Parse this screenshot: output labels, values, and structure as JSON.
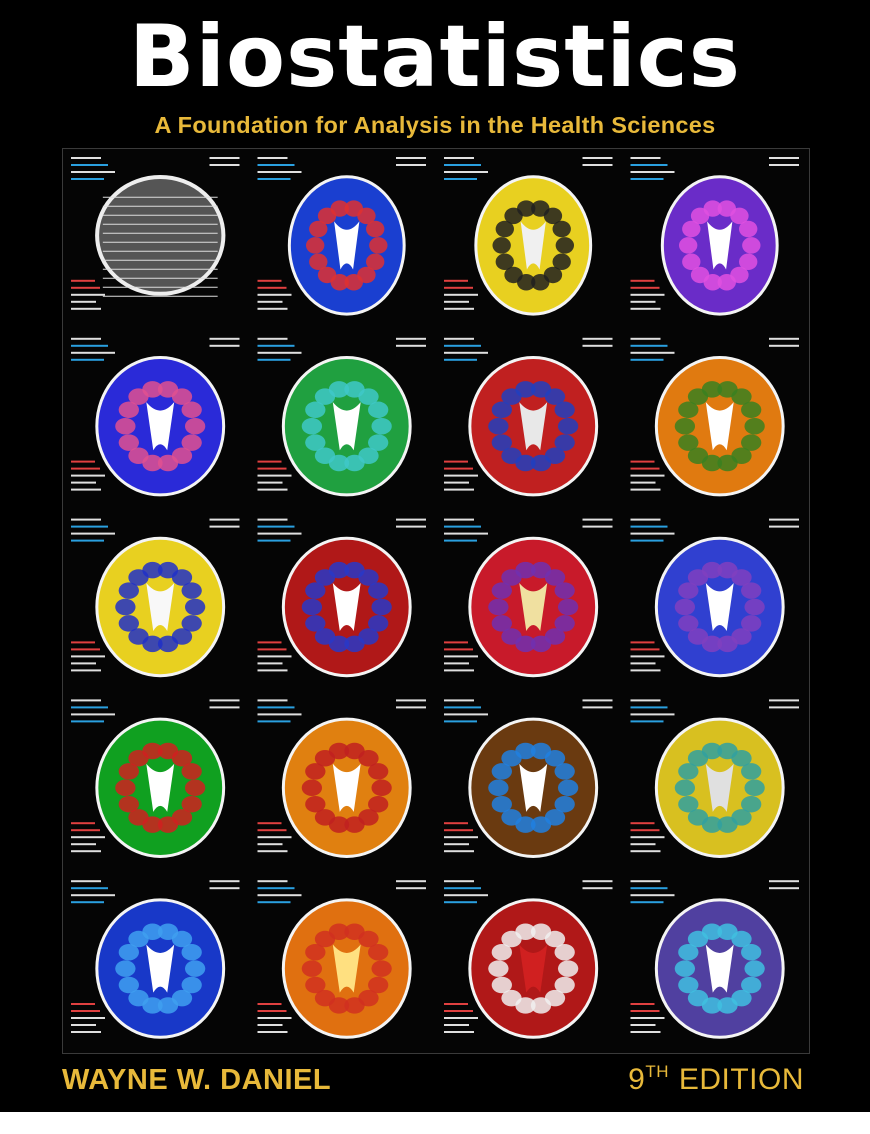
{
  "cover": {
    "title": "Biostatistics",
    "subtitle": "A Foundation for Analysis in the Health Sciences",
    "author": "WAYNE W. DANIEL",
    "edition_number": "9",
    "edition_suffix": "TH",
    "edition_word": "EDITION"
  },
  "image": {
    "description_icon": "brain-mri-scan-grid-icon",
    "rows": 5,
    "cols": 4
  },
  "colors": {
    "background": "#000000",
    "title": "#ffffff",
    "accent": "#e8b93a"
  }
}
